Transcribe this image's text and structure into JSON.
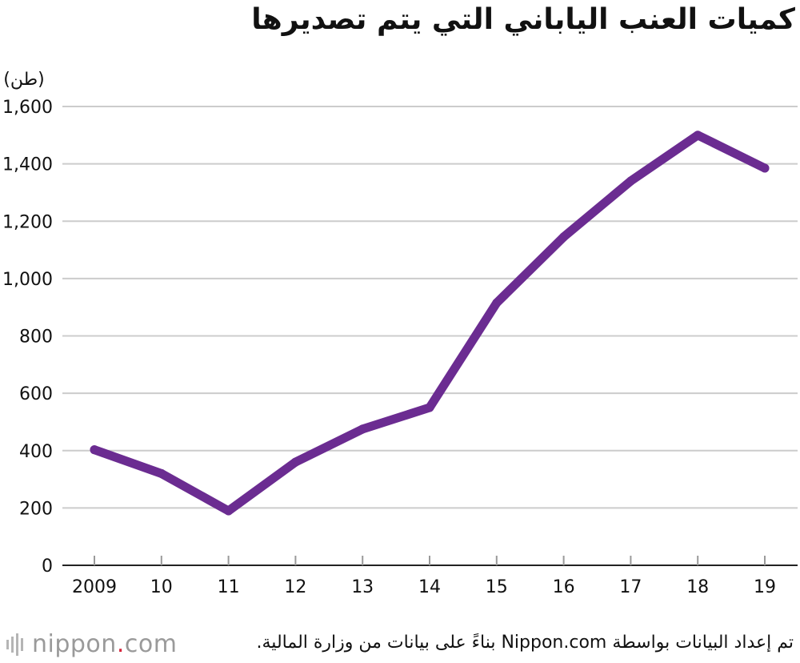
{
  "title": "كميات العنب الياباني التي يتم تصديرها",
  "source": "تم إعداد البيانات بواسطة Nippon.com بناءً على بيانات من وزارة المالية.",
  "logo": {
    "text_before": "nippon",
    "dot": ".",
    "text_after": "com"
  },
  "colors": {
    "line": "#6b2c91",
    "grid": "#cccccc",
    "text": "#111111",
    "logo": "#9a9a9a",
    "logo_dot": "#d6243b"
  },
  "chart_data": {
    "type": "line",
    "ylabel": "(طن)",
    "xlabel": "",
    "categories": [
      "2009",
      "10",
      "11",
      "12",
      "13",
      "14",
      "15",
      "16",
      "17",
      "18",
      "19"
    ],
    "series": [
      {
        "values": [
          403,
          320,
          190,
          360,
          475,
          550,
          915,
          1145,
          1340,
          1500,
          1385
        ]
      }
    ],
    "ylim": [
      0,
      1600
    ],
    "yticks": [
      {
        "value": 0,
        "label": "0"
      },
      {
        "value": 200,
        "label": "200"
      },
      {
        "value": 400,
        "label": "400"
      },
      {
        "value": 600,
        "label": "600"
      },
      {
        "value": 800,
        "label": "800"
      },
      {
        "value": 1000,
        "label": "1,000"
      },
      {
        "value": 1200,
        "label": "1,200"
      },
      {
        "value": 1400,
        "label": "1,400"
      },
      {
        "value": 1600,
        "label": "1,600"
      }
    ],
    "grid": true,
    "legend": "none"
  }
}
